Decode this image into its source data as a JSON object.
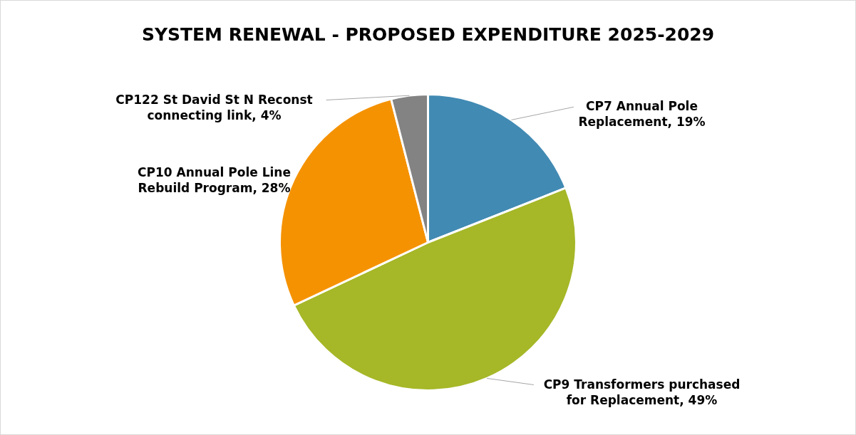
{
  "chart_data": {
    "type": "pie",
    "title": "SYSTEM RENEWAL - PROPOSED EXPENDITURE 2025-2029",
    "categories": [
      "CP7 Annual Pole Replacement",
      "CP9 Transformers purchased for Replacement",
      "CP10 Annual Pole Line Rebuild Program",
      "CP122 St David St N Reconst connecting link"
    ],
    "values": [
      19,
      49,
      28,
      4
    ],
    "value_labels": [
      "19%",
      "49%",
      "28%",
      "4%"
    ],
    "colors": [
      "#418ab3",
      "#a6b727",
      "#f59201",
      "#838383"
    ]
  }
}
